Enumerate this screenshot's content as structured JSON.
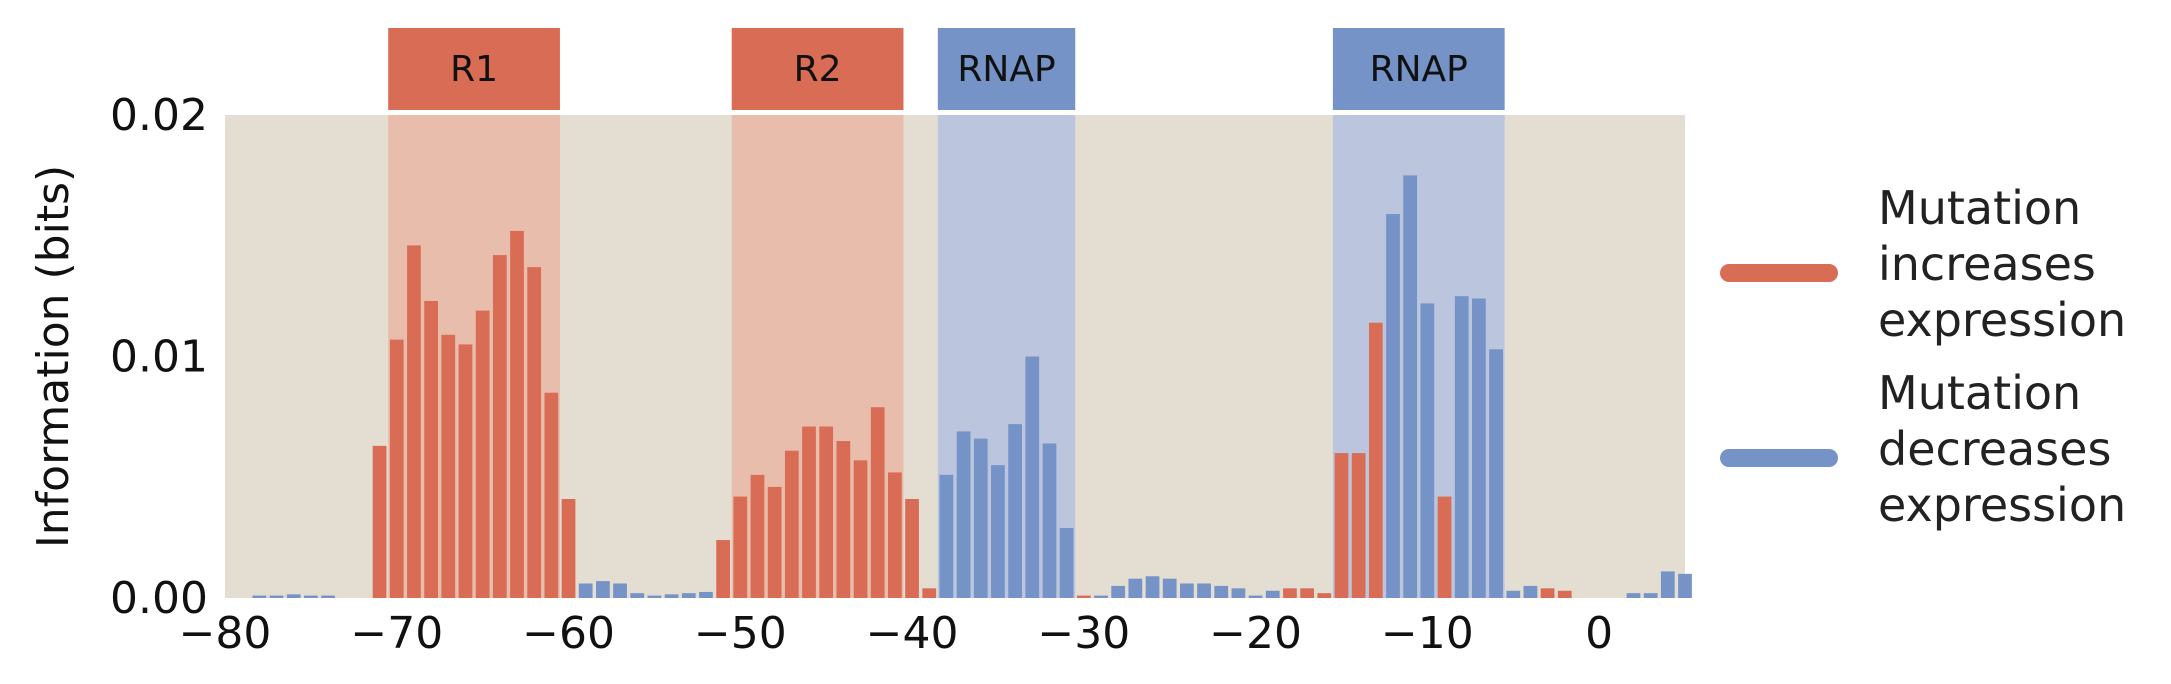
{
  "chart_data": {
    "type": "bar",
    "ylabel": "Information (bits)",
    "xlabel": "",
    "xlim": [
      -80,
      5
    ],
    "ylim": [
      0,
      0.02
    ],
    "xticks": [
      "−80",
      "−70",
      "−60",
      "−50",
      "−40",
      "−30",
      "−20",
      "−10",
      "0"
    ],
    "yticks": [
      "0.00",
      "0.01",
      "0.02"
    ],
    "grid": false,
    "legend_position": "right",
    "colors": {
      "increase": "#D96C55",
      "decrease": "#7593C7",
      "background": "#E4DDD2",
      "r_region": "#E9BBAA",
      "rnap_region": "#B8C4DE"
    },
    "regions": [
      {
        "label": "R1",
        "start": -70,
        "end": -60,
        "kind": "repressor"
      },
      {
        "label": "R2",
        "start": -50,
        "end": -40,
        "kind": "repressor"
      },
      {
        "label": "RNAP",
        "start": -38,
        "end": -30,
        "kind": "rnap"
      },
      {
        "label": "RNAP",
        "start": -15,
        "end": -5,
        "kind": "rnap"
      }
    ],
    "series": [
      {
        "name": "Mutation increases expression",
        "key": "increase"
      },
      {
        "name": "Mutation decreases expression",
        "key": "decrease"
      }
    ],
    "bars": [
      {
        "x": -78,
        "y": 0.0001,
        "effect": "decrease"
      },
      {
        "x": -77,
        "y": 0.0001,
        "effect": "decrease"
      },
      {
        "x": -76,
        "y": 0.00015,
        "effect": "decrease"
      },
      {
        "x": -75,
        "y": 0.0001,
        "effect": "decrease"
      },
      {
        "x": -74,
        "y": 0.0001,
        "effect": "decrease"
      },
      {
        "x": -71,
        "y": 0.0063,
        "effect": "increase"
      },
      {
        "x": -70,
        "y": 0.0107,
        "effect": "increase"
      },
      {
        "x": -69,
        "y": 0.0146,
        "effect": "increase"
      },
      {
        "x": -68,
        "y": 0.0123,
        "effect": "increase"
      },
      {
        "x": -67,
        "y": 0.0109,
        "effect": "increase"
      },
      {
        "x": -66,
        "y": 0.0105,
        "effect": "increase"
      },
      {
        "x": -65,
        "y": 0.0119,
        "effect": "increase"
      },
      {
        "x": -64,
        "y": 0.0142,
        "effect": "increase"
      },
      {
        "x": -63,
        "y": 0.0152,
        "effect": "increase"
      },
      {
        "x": -62,
        "y": 0.0137,
        "effect": "increase"
      },
      {
        "x": -61,
        "y": 0.0085,
        "effect": "increase"
      },
      {
        "x": -60,
        "y": 0.0041,
        "effect": "increase"
      },
      {
        "x": -59,
        "y": 0.0006,
        "effect": "decrease"
      },
      {
        "x": -58,
        "y": 0.0007,
        "effect": "decrease"
      },
      {
        "x": -57,
        "y": 0.0006,
        "effect": "decrease"
      },
      {
        "x": -56,
        "y": 0.0002,
        "effect": "decrease"
      },
      {
        "x": -55,
        "y": 0.0001,
        "effect": "decrease"
      },
      {
        "x": -54,
        "y": 0.00015,
        "effect": "decrease"
      },
      {
        "x": -53,
        "y": 0.0002,
        "effect": "decrease"
      },
      {
        "x": -52,
        "y": 0.00025,
        "effect": "decrease"
      },
      {
        "x": -51,
        "y": 0.0024,
        "effect": "increase"
      },
      {
        "x": -50,
        "y": 0.0042,
        "effect": "increase"
      },
      {
        "x": -49,
        "y": 0.0051,
        "effect": "increase"
      },
      {
        "x": -48,
        "y": 0.0046,
        "effect": "increase"
      },
      {
        "x": -47,
        "y": 0.0061,
        "effect": "increase"
      },
      {
        "x": -46,
        "y": 0.0071,
        "effect": "increase"
      },
      {
        "x": -45,
        "y": 0.0071,
        "effect": "increase"
      },
      {
        "x": -44,
        "y": 0.0065,
        "effect": "increase"
      },
      {
        "x": -43,
        "y": 0.0057,
        "effect": "increase"
      },
      {
        "x": -42,
        "y": 0.0079,
        "effect": "increase"
      },
      {
        "x": -41,
        "y": 0.0052,
        "effect": "increase"
      },
      {
        "x": -40,
        "y": 0.0041,
        "effect": "increase"
      },
      {
        "x": -39,
        "y": 0.0004,
        "effect": "increase"
      },
      {
        "x": -38,
        "y": 0.0051,
        "effect": "decrease"
      },
      {
        "x": -37,
        "y": 0.0069,
        "effect": "decrease"
      },
      {
        "x": -36,
        "y": 0.0066,
        "effect": "decrease"
      },
      {
        "x": -35,
        "y": 0.0055,
        "effect": "decrease"
      },
      {
        "x": -34,
        "y": 0.0072,
        "effect": "decrease"
      },
      {
        "x": -33,
        "y": 0.01,
        "effect": "decrease"
      },
      {
        "x": -32,
        "y": 0.0064,
        "effect": "decrease"
      },
      {
        "x": -31,
        "y": 0.0029,
        "effect": "decrease"
      },
      {
        "x": -30,
        "y": 0.0001,
        "effect": "increase"
      },
      {
        "x": -29,
        "y": 0.0001,
        "effect": "decrease"
      },
      {
        "x": -28,
        "y": 0.0005,
        "effect": "decrease"
      },
      {
        "x": -27,
        "y": 0.0008,
        "effect": "decrease"
      },
      {
        "x": -26,
        "y": 0.0009,
        "effect": "decrease"
      },
      {
        "x": -25,
        "y": 0.0008,
        "effect": "decrease"
      },
      {
        "x": -24,
        "y": 0.0006,
        "effect": "decrease"
      },
      {
        "x": -23,
        "y": 0.0006,
        "effect": "decrease"
      },
      {
        "x": -22,
        "y": 0.0005,
        "effect": "decrease"
      },
      {
        "x": -21,
        "y": 0.0004,
        "effect": "decrease"
      },
      {
        "x": -20,
        "y": 0.0001,
        "effect": "decrease"
      },
      {
        "x": -19,
        "y": 0.0003,
        "effect": "decrease"
      },
      {
        "x": -18,
        "y": 0.0004,
        "effect": "increase"
      },
      {
        "x": -17,
        "y": 0.0004,
        "effect": "increase"
      },
      {
        "x": -16,
        "y": 0.0002,
        "effect": "increase"
      },
      {
        "x": -15,
        "y": 0.006,
        "effect": "increase"
      },
      {
        "x": -14,
        "y": 0.006,
        "effect": "increase"
      },
      {
        "x": -13,
        "y": 0.0114,
        "effect": "increase"
      },
      {
        "x": -12,
        "y": 0.0159,
        "effect": "decrease"
      },
      {
        "x": -11,
        "y": 0.0175,
        "effect": "decrease"
      },
      {
        "x": -10,
        "y": 0.0122,
        "effect": "decrease"
      },
      {
        "x": -9,
        "y": 0.0042,
        "effect": "increase"
      },
      {
        "x": -8,
        "y": 0.0125,
        "effect": "decrease"
      },
      {
        "x": -7,
        "y": 0.0124,
        "effect": "decrease"
      },
      {
        "x": -6,
        "y": 0.0103,
        "effect": "decrease"
      },
      {
        "x": -5,
        "y": 0.0003,
        "effect": "decrease"
      },
      {
        "x": -4,
        "y": 0.0005,
        "effect": "decrease"
      },
      {
        "x": -3,
        "y": 0.0004,
        "effect": "increase"
      },
      {
        "x": -2,
        "y": 0.0003,
        "effect": "increase"
      },
      {
        "x": 2,
        "y": 0.0002,
        "effect": "decrease"
      },
      {
        "x": 3,
        "y": 0.0002,
        "effect": "decrease"
      },
      {
        "x": 4,
        "y": 0.0011,
        "effect": "decrease"
      },
      {
        "x": 5,
        "y": 0.001,
        "effect": "decrease"
      }
    ]
  },
  "legend": {
    "items": [
      {
        "key": "increase",
        "lines": [
          "Mutation",
          "increases",
          "expression"
        ]
      },
      {
        "key": "decrease",
        "lines": [
          "Mutation",
          "decreases",
          "expression"
        ]
      }
    ]
  }
}
